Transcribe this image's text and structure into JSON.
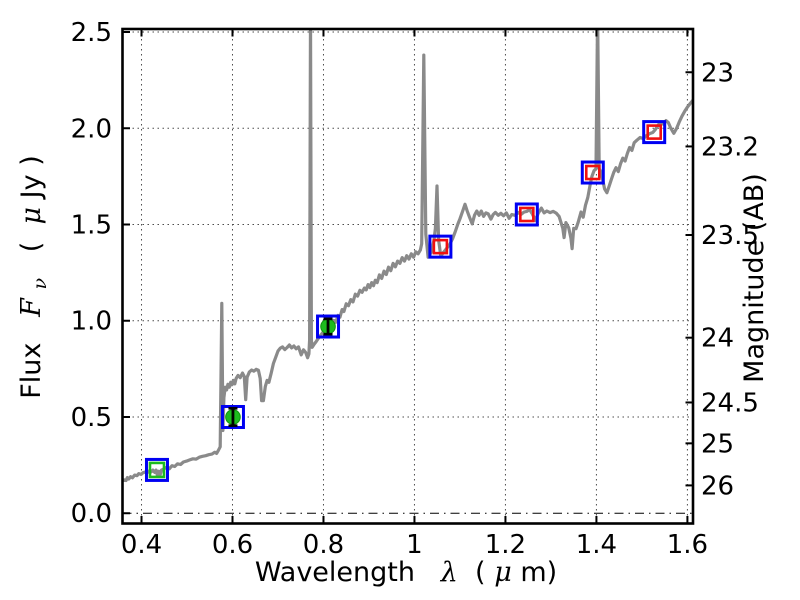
{
  "figure": {
    "background": "#ffffff",
    "description": "Galaxy SED: model spectrum with emission lines, model and observed photometry"
  },
  "chart_data": {
    "type": "line",
    "title": "",
    "xlabel_parts": {
      "word": "Wavelength  ",
      "symbol": "λ",
      "open": " (",
      "mu": "μ",
      "close": "m)"
    },
    "ylabel_left_parts": {
      "word": "Flux  ",
      "symbol": "F",
      "sub": "ν",
      "open": "  ( ",
      "mu": "μ",
      "close": "Jy )"
    },
    "ylabel_right": "Magnitude (AB)",
    "xlim": [
      0.3582,
      1.6123
    ],
    "ylim": [
      -0.0533,
      2.5156
    ],
    "x_ticks": [
      0.4,
      0.6,
      0.8,
      1.0,
      1.2,
      1.4,
      1.6
    ],
    "x_tick_labels": [
      "0.4",
      "0.6",
      "0.8",
      "1",
      "1.2",
      "1.4",
      "1.6"
    ],
    "y_ticks_left": [
      0.0,
      0.5,
      1.0,
      1.5,
      2.0,
      2.5
    ],
    "y_tick_labels_left": [
      "0.0",
      "0.5",
      "1.0",
      "1.5",
      "2.0",
      "2.5"
    ],
    "y_ticks_right_mag": [
      23,
      23.2,
      23.5,
      24,
      24.5,
      25,
      26
    ],
    "y_tick_labels_right": [
      "23",
      "23.2",
      "23.5",
      "24",
      "24.5",
      "25",
      "26"
    ],
    "mag_zeropoint_mujy": 23.9,
    "grid_style": "dotted",
    "zero_line_style": "dash-dot",
    "colors": {
      "spectrum": "#8a8a8a",
      "model_square": "#0000f2",
      "observed_green": "#1dbb1d",
      "observed_green_edge": "#0d930d",
      "observed_red": "#f01010",
      "errorbar": "#000000",
      "grid": "#4d4d4d",
      "axis": "#000000"
    },
    "emission_line_peaks": [
      {
        "wavelength": 0.577,
        "peak_flux": 1.09,
        "clipped": false
      },
      {
        "wavelength": 0.771,
        "peak_flux": 2.52,
        "clipped": true
      },
      {
        "wavelength": 1.021,
        "peak_flux": 2.38,
        "clipped": false
      },
      {
        "wavelength": 1.05,
        "peak_flux": 1.7,
        "clipped": false
      },
      {
        "wavelength": 1.403,
        "peak_flux": 2.52,
        "clipped": true
      }
    ],
    "photometry": {
      "model_open_squares": [
        [
          0.434,
          0.225
        ],
        [
          0.601,
          0.5
        ],
        [
          0.81,
          0.97
        ],
        [
          1.057,
          1.385
        ],
        [
          1.247,
          1.552
        ],
        [
          1.392,
          1.77
        ],
        [
          1.527,
          1.98
        ]
      ],
      "observed": [
        {
          "wavelength": 0.434,
          "flux": 0.225,
          "marker": "green-open-square"
        },
        {
          "wavelength": 0.601,
          "flux": 0.5,
          "flux_err": 0.045,
          "marker": "green-filled-circle-errorbar"
        },
        {
          "wavelength": 0.81,
          "flux": 0.97,
          "flux_err": 0.04,
          "marker": "green-filled-circle-errorbar"
        },
        {
          "wavelength": 1.057,
          "flux": 1.385,
          "marker": "red-open-square"
        },
        {
          "wavelength": 1.247,
          "flux": 1.552,
          "marker": "red-open-square"
        },
        {
          "wavelength": 1.392,
          "flux": 1.77,
          "marker": "red-open-square"
        },
        {
          "wavelength": 1.527,
          "flux": 1.98,
          "marker": "red-open-square"
        }
      ]
    },
    "spectrum_points": [
      [
        0.358,
        0.168
      ],
      [
        0.362,
        0.173
      ],
      [
        0.366,
        0.17
      ],
      [
        0.369,
        0.185
      ],
      [
        0.372,
        0.178
      ],
      [
        0.376,
        0.19
      ],
      [
        0.38,
        0.184
      ],
      [
        0.385,
        0.198
      ],
      [
        0.39,
        0.195
      ],
      [
        0.394,
        0.206
      ],
      [
        0.399,
        0.202
      ],
      [
        0.403,
        0.21
      ],
      [
        0.408,
        0.214
      ],
      [
        0.412,
        0.21
      ],
      [
        0.417,
        0.22
      ],
      [
        0.421,
        0.215
      ],
      [
        0.425,
        0.224
      ],
      [
        0.429,
        0.212
      ],
      [
        0.432,
        0.224
      ],
      [
        0.435,
        0.196
      ],
      [
        0.438,
        0.218
      ],
      [
        0.441,
        0.2
      ],
      [
        0.444,
        0.224
      ],
      [
        0.449,
        0.23
      ],
      [
        0.455,
        0.238
      ],
      [
        0.461,
        0.231
      ],
      [
        0.467,
        0.247
      ],
      [
        0.473,
        0.243
      ],
      [
        0.479,
        0.257
      ],
      [
        0.486,
        0.253
      ],
      [
        0.492,
        0.266
      ],
      [
        0.499,
        0.271
      ],
      [
        0.506,
        0.277
      ],
      [
        0.513,
        0.283
      ],
      [
        0.52,
        0.281
      ],
      [
        0.527,
        0.291
      ],
      [
        0.534,
        0.296
      ],
      [
        0.541,
        0.299
      ],
      [
        0.548,
        0.304
      ],
      [
        0.555,
        0.307
      ],
      [
        0.561,
        0.317
      ],
      [
        0.565,
        0.311
      ],
      [
        0.569,
        0.327
      ],
      [
        0.573,
        0.345
      ],
      [
        0.5765,
        1.09
      ],
      [
        0.579,
        0.43
      ],
      [
        0.581,
        0.6
      ],
      [
        0.584,
        0.655
      ],
      [
        0.587,
        0.64
      ],
      [
        0.59,
        0.67
      ],
      [
        0.593,
        0.655
      ],
      [
        0.596,
        0.68
      ],
      [
        0.599,
        0.668
      ],
      [
        0.602,
        0.69
      ],
      [
        0.605,
        0.672
      ],
      [
        0.608,
        0.7
      ],
      [
        0.612,
        0.716
      ],
      [
        0.617,
        0.704
      ],
      [
        0.622,
        0.728
      ],
      [
        0.626,
        0.71
      ],
      [
        0.629,
        0.59
      ],
      [
        0.632,
        0.706
      ],
      [
        0.637,
        0.733
      ],
      [
        0.642,
        0.744
      ],
      [
        0.647,
        0.738
      ],
      [
        0.652,
        0.748
      ],
      [
        0.657,
        0.743
      ],
      [
        0.661,
        0.7
      ],
      [
        0.664,
        0.585
      ],
      [
        0.668,
        0.585
      ],
      [
        0.672,
        0.658
      ],
      [
        0.676,
        0.69
      ],
      [
        0.68,
        0.68
      ],
      [
        0.685,
        0.728
      ],
      [
        0.69,
        0.778
      ],
      [
        0.695,
        0.81
      ],
      [
        0.7,
        0.843
      ],
      [
        0.705,
        0.858
      ],
      [
        0.71,
        0.864
      ],
      [
        0.715,
        0.85
      ],
      [
        0.72,
        0.861
      ],
      [
        0.725,
        0.874
      ],
      [
        0.73,
        0.859
      ],
      [
        0.735,
        0.869
      ],
      [
        0.74,
        0.854
      ],
      [
        0.745,
        0.864
      ],
      [
        0.751,
        0.823
      ],
      [
        0.756,
        0.849
      ],
      [
        0.761,
        0.835
      ],
      [
        0.765,
        0.808
      ],
      [
        0.768,
        0.828
      ],
      [
        0.7695,
        0.9
      ],
      [
        0.7715,
        2.6
      ],
      [
        0.7735,
        0.9
      ],
      [
        0.775,
        0.862
      ],
      [
        0.779,
        0.876
      ],
      [
        0.784,
        0.892
      ],
      [
        0.789,
        0.91
      ],
      [
        0.794,
        0.925
      ],
      [
        0.799,
        0.94
      ],
      [
        0.804,
        0.952
      ],
      [
        0.809,
        0.966
      ],
      [
        0.814,
        0.978
      ],
      [
        0.819,
        0.99
      ],
      [
        0.823,
        1.002
      ],
      [
        0.827,
        0.992
      ],
      [
        0.832,
        1.028
      ],
      [
        0.836,
        1.018
      ],
      [
        0.841,
        1.058
      ],
      [
        0.845,
        1.048
      ],
      [
        0.85,
        1.088
      ],
      [
        0.855,
        1.078
      ],
      [
        0.86,
        1.11
      ],
      [
        0.865,
        1.098
      ],
      [
        0.87,
        1.138
      ],
      [
        0.875,
        1.128
      ],
      [
        0.88,
        1.158
      ],
      [
        0.885,
        1.148
      ],
      [
        0.89,
        1.17
      ],
      [
        0.894,
        1.16
      ],
      [
        0.898,
        1.188
      ],
      [
        0.902,
        1.172
      ],
      [
        0.906,
        1.198
      ],
      [
        0.91,
        1.182
      ],
      [
        0.914,
        1.21
      ],
      [
        0.918,
        1.198
      ],
      [
        0.923,
        1.238
      ],
      [
        0.928,
        1.22
      ],
      [
        0.933,
        1.258
      ],
      [
        0.938,
        1.24
      ],
      [
        0.943,
        1.278
      ],
      [
        0.948,
        1.26
      ],
      [
        0.953,
        1.298
      ],
      [
        0.958,
        1.28
      ],
      [
        0.963,
        1.31
      ],
      [
        0.968,
        1.298
      ],
      [
        0.973,
        1.328
      ],
      [
        0.978,
        1.31
      ],
      [
        0.983,
        1.338
      ],
      [
        0.988,
        1.32
      ],
      [
        0.993,
        1.348
      ],
      [
        0.998,
        1.33
      ],
      [
        1.003,
        1.358
      ],
      [
        1.008,
        1.348
      ],
      [
        1.013,
        1.368
      ],
      [
        1.016,
        1.4
      ],
      [
        1.0205,
        2.38
      ],
      [
        1.025,
        1.45
      ],
      [
        1.03,
        1.33
      ],
      [
        1.034,
        1.345
      ],
      [
        1.038,
        1.36
      ],
      [
        1.043,
        1.42
      ],
      [
        1.046,
        1.48
      ],
      [
        1.0495,
        1.7
      ],
      [
        1.053,
        1.42
      ],
      [
        1.058,
        1.335
      ],
      [
        1.063,
        1.353
      ],
      [
        1.069,
        1.37
      ],
      [
        1.078,
        1.398
      ],
      [
        1.084,
        1.428
      ],
      [
        1.089,
        1.458
      ],
      [
        1.095,
        1.5
      ],
      [
        1.1,
        1.53
      ],
      [
        1.106,
        1.57
      ],
      [
        1.111,
        1.605
      ],
      [
        1.116,
        1.57
      ],
      [
        1.121,
        1.538
      ],
      [
        1.127,
        1.503
      ],
      [
        1.132,
        1.548
      ],
      [
        1.137,
        1.57
      ],
      [
        1.142,
        1.548
      ],
      [
        1.147,
        1.57
      ],
      [
        1.152,
        1.542
      ],
      [
        1.157,
        1.56
      ],
      [
        1.162,
        1.555
      ],
      [
        1.168,
        1.528
      ],
      [
        1.173,
        1.552
      ],
      [
        1.178,
        1.563
      ],
      [
        1.184,
        1.548
      ],
      [
        1.19,
        1.558
      ],
      [
        1.196,
        1.545
      ],
      [
        1.202,
        1.56
      ],
      [
        1.208,
        1.532
      ],
      [
        1.214,
        1.552
      ],
      [
        1.221,
        1.548
      ],
      [
        1.228,
        1.563
      ],
      [
        1.234,
        1.552
      ],
      [
        1.241,
        1.565
      ],
      [
        1.247,
        1.568
      ],
      [
        1.253,
        1.578
      ],
      [
        1.259,
        1.555
      ],
      [
        1.266,
        1.52
      ],
      [
        1.272,
        1.558
      ],
      [
        1.279,
        1.585
      ],
      [
        1.285,
        1.56
      ],
      [
        1.291,
        1.57
      ],
      [
        1.298,
        1.562
      ],
      [
        1.305,
        1.568
      ],
      [
        1.312,
        1.558
      ],
      [
        1.318,
        1.542
      ],
      [
        1.326,
        1.48
      ],
      [
        1.329,
        1.432
      ],
      [
        1.333,
        1.51
      ],
      [
        1.339,
        1.483
      ],
      [
        1.344,
        1.43
      ],
      [
        1.3465,
        1.375
      ],
      [
        1.35,
        1.48
      ],
      [
        1.355,
        1.478
      ],
      [
        1.36,
        1.512
      ],
      [
        1.366,
        1.565
      ],
      [
        1.371,
        1.538
      ],
      [
        1.376,
        1.6
      ],
      [
        1.381,
        1.64
      ],
      [
        1.386,
        1.705
      ],
      [
        1.39,
        1.75
      ],
      [
        1.395,
        1.78
      ],
      [
        1.399,
        1.79
      ],
      [
        1.4025,
        2.6
      ],
      [
        1.406,
        1.79
      ],
      [
        1.41,
        1.772
      ],
      [
        1.414,
        1.73
      ],
      [
        1.418,
        1.685
      ],
      [
        1.423,
        1.665
      ],
      [
        1.428,
        1.7
      ],
      [
        1.433,
        1.735
      ],
      [
        1.438,
        1.77
      ],
      [
        1.443,
        1.795
      ],
      [
        1.448,
        1.775
      ],
      [
        1.453,
        1.815
      ],
      [
        1.458,
        1.845
      ],
      [
        1.463,
        1.83
      ],
      [
        1.468,
        1.87
      ],
      [
        1.473,
        1.9
      ],
      [
        1.478,
        1.885
      ],
      [
        1.483,
        1.925
      ],
      [
        1.489,
        1.938
      ],
      [
        1.496,
        1.952
      ],
      [
        1.503,
        1.946
      ],
      [
        1.51,
        1.962
      ],
      [
        1.517,
        1.972
      ],
      [
        1.524,
        1.978
      ],
      [
        1.53,
        1.995
      ],
      [
        1.536,
        2.018
      ],
      [
        1.542,
        2.028
      ],
      [
        1.548,
        2.02
      ],
      [
        1.553,
        2.04
      ],
      [
        1.558,
        2.03
      ],
      [
        1.564,
        1.998
      ],
      [
        1.57,
        1.974
      ],
      [
        1.576,
        1.998
      ],
      [
        1.582,
        2.032
      ],
      [
        1.588,
        2.062
      ],
      [
        1.594,
        2.088
      ],
      [
        1.6,
        2.11
      ],
      [
        1.606,
        2.128
      ],
      [
        1.612,
        2.145
      ]
    ]
  }
}
